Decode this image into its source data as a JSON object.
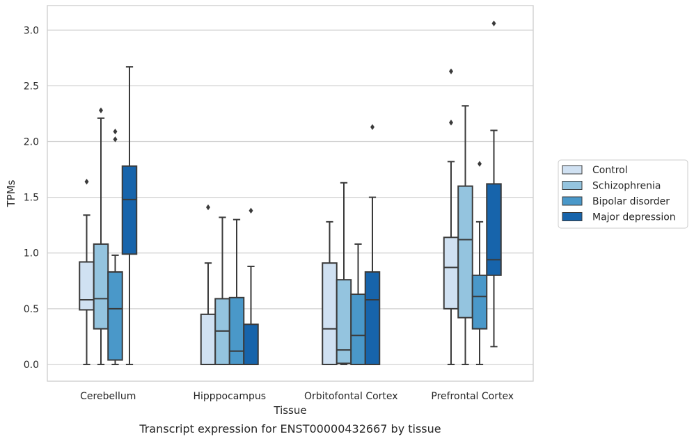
{
  "chart_data": {
    "type": "box",
    "title": "Transcript expression for ENST00000432667 by tissue",
    "xlabel": "Tissue",
    "ylabel": "TPMs",
    "ylim": [
      -0.15,
      3.22
    ],
    "yticks": [
      0.0,
      0.5,
      1.0,
      1.5,
      2.0,
      2.5,
      3.0
    ],
    "ytick_labels": [
      "0.0",
      "0.5",
      "1.0",
      "1.5",
      "2.0",
      "2.5",
      "3.0"
    ],
    "grid": "horizontal",
    "legend_position": "right",
    "categories": [
      "Cerebellum",
      "Hipppocampus",
      "Orbitofontal Cortex",
      "Prefrontal Cortex"
    ],
    "series": [
      {
        "name": "Control",
        "color": "#d0e1f2",
        "boxes": [
          {
            "whislo": 0.0,
            "q1": 0.49,
            "med": 0.58,
            "q3": 0.92,
            "whishi": 1.34,
            "fliers": [
              1.64
            ]
          },
          {
            "whislo": 0.0,
            "q1": 0.0,
            "med": 0.0,
            "q3": 0.45,
            "whishi": 0.91,
            "fliers": [
              1.41
            ]
          },
          {
            "whislo": 0.0,
            "q1": 0.0,
            "med": 0.32,
            "q3": 0.91,
            "whishi": 1.28,
            "fliers": []
          },
          {
            "whislo": 0.0,
            "q1": 0.5,
            "med": 0.87,
            "q3": 1.14,
            "whishi": 1.82,
            "fliers": [
              2.17,
              2.63
            ]
          }
        ]
      },
      {
        "name": "Schizophrenia",
        "color": "#94c4df",
        "boxes": [
          {
            "whislo": 0.0,
            "q1": 0.32,
            "med": 0.59,
            "q3": 1.08,
            "whishi": 2.21,
            "fliers": [
              2.28
            ]
          },
          {
            "whislo": 0.0,
            "q1": 0.0,
            "med": 0.3,
            "q3": 0.59,
            "whishi": 1.32,
            "fliers": []
          },
          {
            "whislo": 0.0,
            "q1": 0.01,
            "med": 0.13,
            "q3": 0.76,
            "whishi": 1.63,
            "fliers": []
          },
          {
            "whislo": 0.0,
            "q1": 0.42,
            "med": 1.12,
            "q3": 1.6,
            "whishi": 2.32,
            "fliers": []
          }
        ]
      },
      {
        "name": "Bipolar disorder",
        "color": "#4a98c9",
        "boxes": [
          {
            "whislo": 0.0,
            "q1": 0.04,
            "med": 0.5,
            "q3": 0.83,
            "whishi": 0.98,
            "fliers": [
              2.02,
              2.09
            ]
          },
          {
            "whislo": 0.0,
            "q1": 0.0,
            "med": 0.12,
            "q3": 0.6,
            "whishi": 1.3,
            "fliers": []
          },
          {
            "whislo": 0.0,
            "q1": 0.0,
            "med": 0.26,
            "q3": 0.63,
            "whishi": 1.08,
            "fliers": []
          },
          {
            "whislo": 0.0,
            "q1": 0.32,
            "med": 0.61,
            "q3": 0.8,
            "whishi": 1.28,
            "fliers": [
              1.8
            ]
          }
        ]
      },
      {
        "name": "Major depression",
        "color": "#1764ab",
        "boxes": [
          {
            "whislo": 0.0,
            "q1": 0.99,
            "med": 1.48,
            "q3": 1.78,
            "whishi": 2.67,
            "fliers": []
          },
          {
            "whislo": 0.0,
            "q1": 0.0,
            "med": 0.0,
            "q3": 0.36,
            "whishi": 0.88,
            "fliers": [
              1.38
            ]
          },
          {
            "whislo": 0.0,
            "q1": 0.0,
            "med": 0.58,
            "q3": 0.83,
            "whishi": 1.5,
            "fliers": [
              2.13
            ]
          },
          {
            "whislo": 0.16,
            "q1": 0.8,
            "med": 0.94,
            "q3": 1.62,
            "whishi": 2.1,
            "fliers": [
              3.06
            ]
          }
        ]
      }
    ]
  }
}
